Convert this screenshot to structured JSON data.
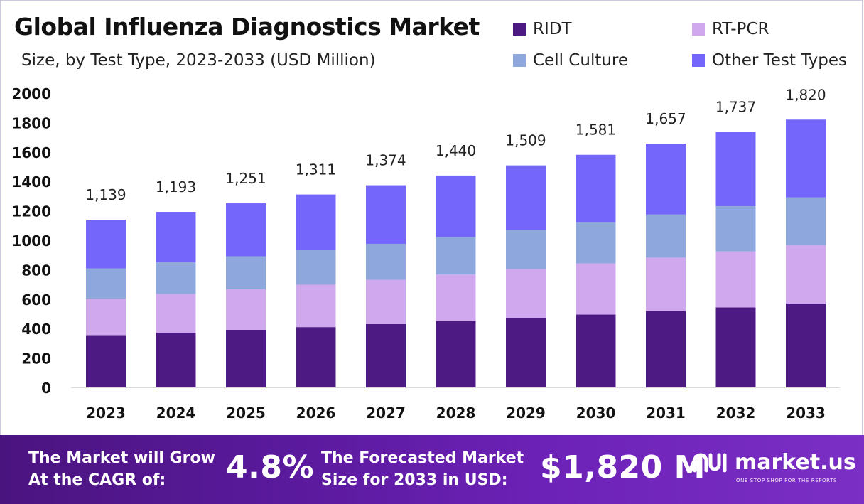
{
  "chart_data": {
    "type": "stacked-bar",
    "title": "Global Influenza Diagnostics Market",
    "subtitle": "Size, by Test Type, 2023-2033 (USD Million)",
    "categories": [
      "2023",
      "2024",
      "2025",
      "2026",
      "2027",
      "2028",
      "2029",
      "2030",
      "2031",
      "2032",
      "2033"
    ],
    "series": [
      {
        "name": "RIDT",
        "color": "#4d1a84",
        "values": [
          355,
          373,
          392,
          410,
          430,
          451,
          473,
          495,
          519,
          544,
          570
        ]
      },
      {
        "name": "RT-PCR",
        "color": "#d0a8ee",
        "values": [
          248,
          262,
          275,
          288,
          302,
          316,
          331,
          347,
          363,
          380,
          398
        ]
      },
      {
        "name": "Cell Culture",
        "color": "#8ea7dc",
        "values": [
          206,
          215,
          224,
          234,
          244,
          255,
          267,
          280,
          293,
          308,
          323
        ]
      },
      {
        "name": "Other Test Types",
        "color": "#7566fb",
        "values": [
          330,
          343,
          360,
          379,
          398,
          418,
          438,
          459,
          482,
          505,
          529
        ]
      }
    ],
    "totals": [
      1139,
      1193,
      1251,
      1311,
      1374,
      1440,
      1509,
      1581,
      1657,
      1737,
      1820
    ],
    "total_labels": [
      "1,139",
      "1,193",
      "1,251",
      "1,311",
      "1,374",
      "1,440",
      "1,509",
      "1,581",
      "1,657",
      "1,737",
      "1,820"
    ],
    "y_ticks": [
      0,
      200,
      400,
      600,
      800,
      1000,
      1200,
      1400,
      1600,
      1800,
      2000
    ],
    "ylim": [
      0,
      2000
    ],
    "xlabel": "",
    "ylabel": "",
    "legend_position": "top-right",
    "grid": false
  },
  "banner": {
    "cagr_label_line1": "The Market will Grow",
    "cagr_label_line2": "At the CAGR of:",
    "cagr_value": "4.8%",
    "forecast_label_line1": "The Forecasted Market",
    "forecast_label_line2": "Size for 2033 in USD:",
    "forecast_value": "$1,820 M",
    "logo_text": "market.us",
    "logo_tagline": "ONE STOP SHOP FOR THE REPORTS"
  }
}
